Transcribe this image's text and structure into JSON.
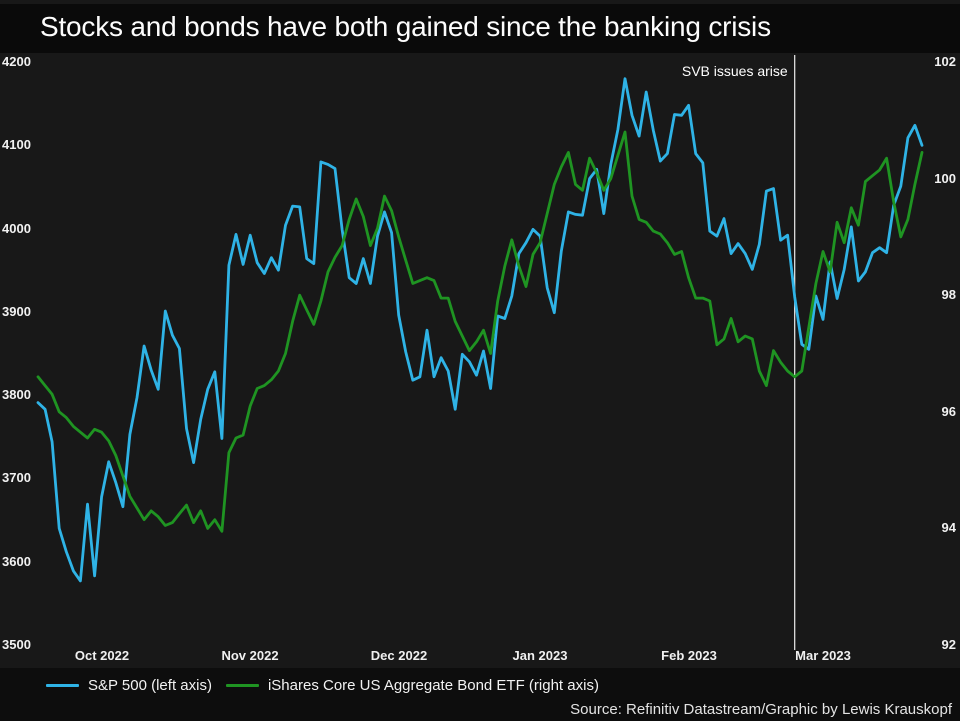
{
  "title": "Stocks and bonds have both gained since the banking crisis",
  "source": "Source: Refinitiv Datastream/Graphic by Lewis Krauskopf",
  "annotation": {
    "label": "SVB issues arise",
    "date": "2023-03-09"
  },
  "colors": {
    "background": "#181818",
    "band": "#0a0a0a",
    "sp500": "#2fb3e6",
    "agg": "#1f9422",
    "annotation_line": "#efefef",
    "axis_text": "#f2f2f2"
  },
  "legend": [
    {
      "label": "S&P 500 (left axis)",
      "color": "#2fb3e6"
    },
    {
      "label": "iShares Core US Aggregate Bond ETF (right axis)",
      "color": "#1f9422"
    }
  ],
  "chart_data": {
    "type": "line",
    "title": "Stocks and bonds have both gained since the banking crisis",
    "grid": false,
    "legend_position": "bottom",
    "x_axis": {
      "tick_labels": [
        "Oct 2022",
        "Nov 2022",
        "Dec 2022",
        "Jan 2023",
        "Feb 2023",
        "Mar 2023"
      ],
      "tick_dates": [
        "2022-10-15",
        "2022-11-15",
        "2022-12-15",
        "2023-01-15",
        "2023-02-15",
        "2023-03-15"
      ]
    },
    "y_axis_left": {
      "range": [
        3500,
        4200
      ],
      "ticks": [
        4200,
        4100,
        4000,
        3900,
        3800,
        3700,
        3600,
        3500
      ]
    },
    "y_axis_right": {
      "range": [
        92,
        102
      ],
      "ticks": [
        102,
        100,
        98,
        96,
        94,
        92
      ]
    },
    "x": [
      "2022-10-04",
      "2022-10-05",
      "2022-10-06",
      "2022-10-07",
      "2022-10-10",
      "2022-10-11",
      "2022-10-12",
      "2022-10-13",
      "2022-10-14",
      "2022-10-17",
      "2022-10-18",
      "2022-10-19",
      "2022-10-20",
      "2022-10-21",
      "2022-10-24",
      "2022-10-25",
      "2022-10-26",
      "2022-10-27",
      "2022-10-28",
      "2022-10-31",
      "2022-11-01",
      "2022-11-02",
      "2022-11-03",
      "2022-11-04",
      "2022-11-07",
      "2022-11-08",
      "2022-11-09",
      "2022-11-10",
      "2022-11-11",
      "2022-11-14",
      "2022-11-15",
      "2022-11-16",
      "2022-11-17",
      "2022-11-18",
      "2022-11-21",
      "2022-11-22",
      "2022-11-23",
      "2022-11-25",
      "2022-11-28",
      "2022-11-29",
      "2022-11-30",
      "2022-12-01",
      "2022-12-02",
      "2022-12-05",
      "2022-12-06",
      "2022-12-07",
      "2022-12-08",
      "2022-12-09",
      "2022-12-12",
      "2022-12-13",
      "2022-12-14",
      "2022-12-15",
      "2022-12-16",
      "2022-12-19",
      "2022-12-20",
      "2022-12-21",
      "2022-12-22",
      "2022-12-23",
      "2022-12-27",
      "2022-12-28",
      "2022-12-29",
      "2022-12-30",
      "2023-01-03",
      "2023-01-04",
      "2023-01-05",
      "2023-01-06",
      "2023-01-09",
      "2023-01-10",
      "2023-01-11",
      "2023-01-12",
      "2023-01-13",
      "2023-01-17",
      "2023-01-18",
      "2023-01-19",
      "2023-01-20",
      "2023-01-23",
      "2023-01-24",
      "2023-01-25",
      "2023-01-26",
      "2023-01-27",
      "2023-01-30",
      "2023-01-31",
      "2023-02-01",
      "2023-02-02",
      "2023-02-03",
      "2023-02-06",
      "2023-02-07",
      "2023-02-08",
      "2023-02-09",
      "2023-02-10",
      "2023-02-13",
      "2023-02-14",
      "2023-02-15",
      "2023-02-16",
      "2023-02-17",
      "2023-02-21",
      "2023-02-22",
      "2023-02-23",
      "2023-02-24",
      "2023-02-27",
      "2023-02-28",
      "2023-03-01",
      "2023-03-02",
      "2023-03-03",
      "2023-03-06",
      "2023-03-07",
      "2023-03-08",
      "2023-03-09",
      "2023-03-10",
      "2023-03-13",
      "2023-03-14",
      "2023-03-15",
      "2023-03-16",
      "2023-03-17",
      "2023-03-20",
      "2023-03-21",
      "2023-03-22",
      "2023-03-23",
      "2023-03-24",
      "2023-03-27",
      "2023-03-28",
      "2023-03-29",
      "2023-03-30",
      "2023-03-31",
      "2023-04-03",
      "2023-04-04"
    ],
    "series": [
      {
        "name": "S&P 500 (left axis)",
        "axis": "left",
        "color": "#2fb3e6",
        "values": [
          3791,
          3783,
          3744,
          3640,
          3612,
          3589,
          3577,
          3669,
          3583,
          3678,
          3720,
          3695,
          3666,
          3753,
          3797,
          3859,
          3830,
          3807,
          3901,
          3872,
          3856,
          3760,
          3719,
          3771,
          3807,
          3828,
          3748,
          3956,
          3993,
          3957,
          3992,
          3959,
          3946,
          3965,
          3950,
          4004,
          4027,
          4026,
          3964,
          3958,
          4080,
          4077,
          4072,
          3999,
          3941,
          3934,
          3964,
          3934,
          3991,
          4020,
          3995,
          3896,
          3852,
          3818,
          3822,
          3878,
          3822,
          3845,
          3829,
          3783,
          3849,
          3840,
          3824,
          3853,
          3808,
          3895,
          3892,
          3919,
          3970,
          3983,
          3999,
          3991,
          3929,
          3899,
          3973,
          4020,
          4017,
          4016,
          4060,
          4071,
          4018,
          4077,
          4119,
          4180,
          4136,
          4111,
          4164,
          4118,
          4081,
          4090,
          4137,
          4136,
          4148,
          4090,
          4079,
          3997,
          3991,
          4012,
          3970,
          3982,
          3970,
          3951,
          3981,
          4045,
          4048,
          3986,
          3992,
          3918,
          3861,
          3855,
          3919,
          3891,
          3960,
          3916,
          3951,
          4002,
          3937,
          3948,
          3971,
          3977,
          3971,
          4028,
          4051,
          4109,
          4124,
          4100
        ]
      },
      {
        "name": "iShares Core US Aggregate Bond ETF (right axis)",
        "axis": "right",
        "color": "#1f9422",
        "values": [
          96.6,
          96.45,
          96.3,
          96.0,
          95.9,
          95.75,
          95.65,
          95.55,
          95.7,
          95.65,
          95.5,
          95.25,
          94.9,
          94.55,
          94.35,
          94.15,
          94.3,
          94.2,
          94.05,
          94.1,
          94.25,
          94.4,
          94.1,
          94.3,
          94.0,
          94.15,
          93.95,
          95.3,
          95.55,
          95.6,
          96.1,
          96.4,
          96.45,
          96.55,
          96.7,
          97.0,
          97.55,
          98.0,
          97.75,
          97.5,
          97.9,
          98.4,
          98.65,
          98.85,
          99.3,
          99.65,
          99.35,
          98.85,
          99.15,
          99.7,
          99.45,
          99.0,
          98.6,
          98.2,
          98.25,
          98.3,
          98.25,
          97.95,
          97.95,
          97.55,
          97.3,
          97.05,
          97.2,
          97.4,
          97.0,
          97.9,
          98.5,
          98.95,
          98.5,
          98.15,
          98.7,
          98.9,
          99.4,
          99.9,
          100.2,
          100.45,
          99.9,
          99.8,
          100.35,
          100.1,
          99.8,
          100.0,
          100.4,
          100.8,
          99.7,
          99.3,
          99.25,
          99.1,
          99.05,
          98.9,
          98.7,
          98.75,
          98.3,
          97.95,
          97.95,
          97.9,
          97.15,
          97.25,
          97.6,
          97.2,
          97.3,
          97.25,
          96.7,
          96.45,
          97.05,
          96.85,
          96.7,
          96.6,
          96.7,
          97.45,
          98.2,
          98.75,
          98.4,
          99.25,
          98.9,
          99.5,
          99.2,
          99.95,
          100.05,
          100.15,
          100.35,
          99.6,
          99.0,
          99.3,
          99.9,
          100.45
        ]
      }
    ]
  }
}
